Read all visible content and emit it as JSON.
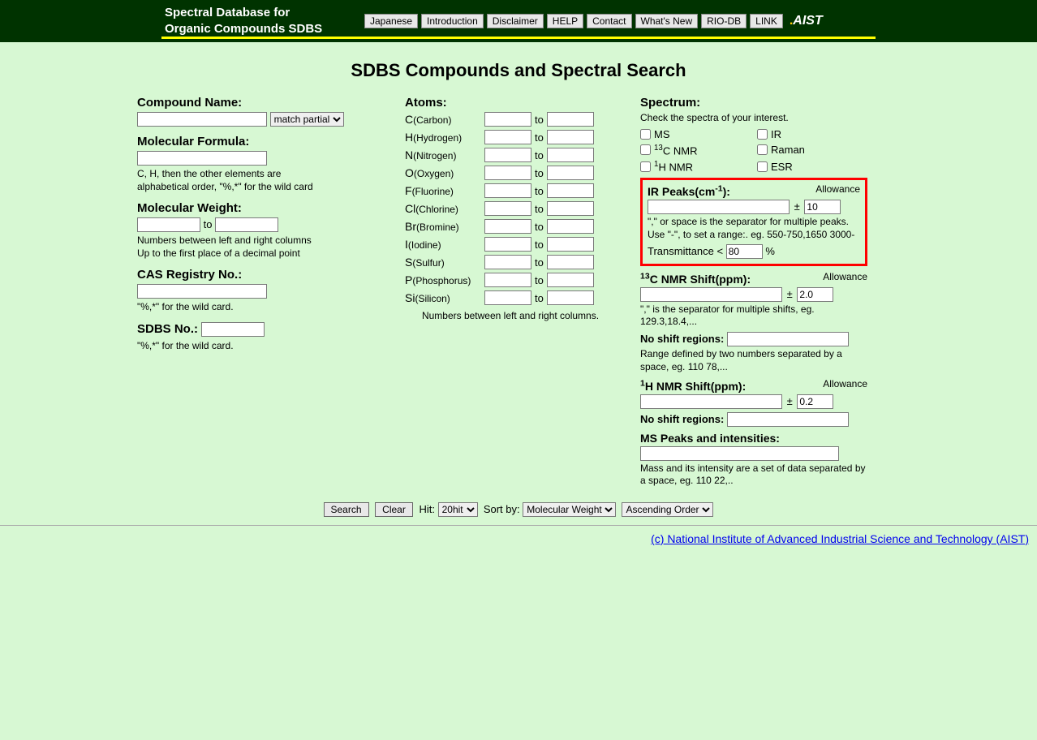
{
  "header": {
    "title_line1": "Spectral Database for",
    "title_line2": "Organic Compounds SDBS",
    "buttons": [
      "Japanese",
      "Introduction",
      "Disclaimer",
      "HELP",
      "Contact",
      "What's New",
      "RIO-DB",
      "LINK"
    ],
    "logo_text": "AIST"
  },
  "page_title": "SDBS Compounds and Spectral Search",
  "col1": {
    "compound_name_label": "Compound Name:",
    "match_option": "match partial",
    "molecular_formula_label": "Molecular Formula:",
    "mf_hint1": "C, H, then the other elements are",
    "mf_hint2": "alphabetical order, \"%,*\" for the wild card",
    "molecular_weight_label": "Molecular Weight:",
    "mw_to": "to",
    "mw_hint1": "Numbers between left and right columns",
    "mw_hint2": "Up to the first place of a decimal point",
    "cas_label": "CAS Registry No.:",
    "cas_hint": "\"%,*\" for the wild card.",
    "sdbs_label": "SDBS No.:",
    "sdbs_hint": "\"%,*\" for the wild card."
  },
  "col2": {
    "atoms_label": "Atoms:",
    "atoms": [
      {
        "sym": "C",
        "name": "(Carbon)"
      },
      {
        "sym": "H",
        "name": "(Hydrogen)"
      },
      {
        "sym": "N",
        "name": "(Nitrogen)"
      },
      {
        "sym": "O",
        "name": "(Oxygen)"
      },
      {
        "sym": "F",
        "name": "(Fluorine)"
      },
      {
        "sym": "Cl",
        "name": "(Chlorine)"
      },
      {
        "sym": "Br",
        "name": "(Bromine)"
      },
      {
        "sym": "I",
        "name": "(Iodine)"
      },
      {
        "sym": "S",
        "name": "(Sulfur)"
      },
      {
        "sym": "P",
        "name": "(Phosphorus)"
      },
      {
        "sym": "Si",
        "name": "(Silicon)"
      }
    ],
    "to": "to",
    "atoms_hint": "Numbers between left and right columns."
  },
  "col3": {
    "spectrum_label": "Spectrum:",
    "spectrum_hint": "Check the spectra of your interest.",
    "checks": [
      {
        "label": "MS",
        "sup": ""
      },
      {
        "label": "IR",
        "sup": ""
      },
      {
        "label": "C NMR",
        "sup": "13"
      },
      {
        "label": "Raman",
        "sup": ""
      },
      {
        "label": "H NMR",
        "sup": "1"
      },
      {
        "label": "ESR",
        "sup": ""
      }
    ],
    "ir_label_pre": "IR Peaks(cm",
    "ir_label_post": "):",
    "allowance": "Allowance",
    "ir_allow_val": "10",
    "ir_hint1": "\",\" or space is the separator for multiple peaks.",
    "ir_hint2": "Use \"-\", to set a range:. eg. 550-750,1650 3000-",
    "trans_label": "Transmittance <",
    "trans_val": "80",
    "trans_pct": "%",
    "c_shift_pre": "C NMR Shift(ppm):",
    "c_allow_val": "2.0",
    "c_hint": "\",\" is the separator for multiple shifts, eg. 129.3,18.4,...",
    "no_shift_label": "No shift regions:",
    "no_shift_hint": "Range defined by two numbers separated by a space, eg. 110 78,...",
    "h_shift_pre": "H NMR Shift(ppm):",
    "h_allow_val": "0.2",
    "ms_label": "MS Peaks and intensities:",
    "ms_hint": "Mass and its intensity are a set of data separated by a space, eg. 110 22,.."
  },
  "footer": {
    "search": "Search",
    "clear": "Clear",
    "hit_label": "Hit:",
    "hit_val": "20hit",
    "sort_label": "Sort by:",
    "sort_val": "Molecular Weight",
    "order_val": "Ascending Order"
  },
  "copyright": "(c) National Institute of Advanced Industrial Science and Technology (AIST)"
}
